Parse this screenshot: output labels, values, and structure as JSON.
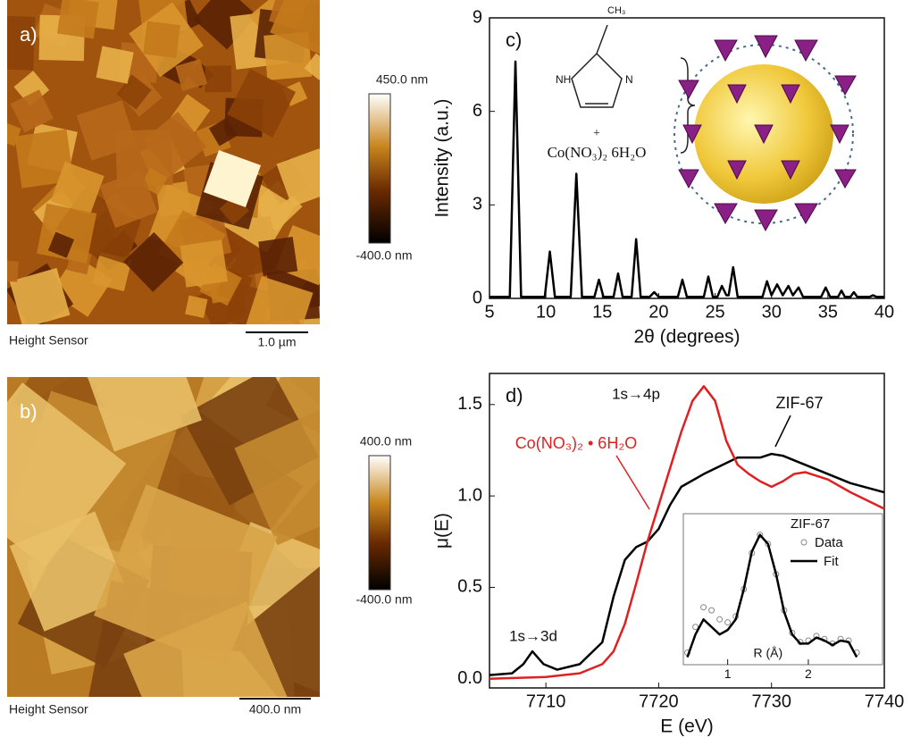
{
  "images": [
    {
      "label": "a)",
      "colorbar_max": "450.0 nm",
      "colorbar_min": "-400.0 nm",
      "caption": "Height Sensor",
      "scale_bar": "1.0 µm"
    },
    {
      "label": "b)",
      "colorbar_max": "400.0 nm",
      "colorbar_min": "-400.0 nm",
      "caption": "Height Sensor",
      "scale_bar": "400.0 nm"
    }
  ],
  "chart_data": [
    {
      "type": "line",
      "label": "c)",
      "xlabel": "2θ (degrees)",
      "ylabel": "Intensity (a.u.)",
      "x": [
        5,
        6.8,
        7.3,
        7.8,
        9.9,
        10.35,
        10.8,
        12.2,
        12.7,
        13.2,
        14.3,
        14.7,
        15.1,
        16.0,
        16.4,
        16.8,
        17.6,
        18.0,
        18.4,
        19.2,
        19.6,
        20.0,
        21.7,
        22.1,
        22.5,
        24.0,
        24.4,
        24.8,
        25.2,
        25.6,
        26.0,
        26.2,
        26.6,
        27.0,
        29.2,
        29.6,
        30.0,
        30.5,
        31.0,
        31.5,
        31.9,
        32.4,
        32.8,
        34.4,
        34.8,
        35.2,
        35.9,
        36.2,
        36.5,
        37.0,
        37.3,
        37.6,
        38.7,
        39.0,
        39.3,
        40
      ],
      "series": [
        {
          "color": "#000000",
          "values": [
            0.05,
            0.05,
            7.6,
            0.05,
            0.05,
            1.5,
            0.05,
            0.05,
            4.0,
            0.05,
            0.05,
            0.6,
            0.05,
            0.05,
            0.8,
            0.05,
            0.05,
            1.9,
            0.05,
            0.05,
            0.2,
            0.05,
            0.05,
            0.6,
            0.05,
            0.05,
            0.7,
            0.05,
            0.05,
            0.4,
            0.1,
            0.1,
            1.0,
            0.05,
            0.05,
            0.55,
            0.1,
            0.45,
            0.1,
            0.4,
            0.1,
            0.35,
            0.05,
            0.05,
            0.35,
            0.05,
            0.05,
            0.25,
            0.05,
            0.05,
            0.2,
            0.05,
            0.05,
            0.1,
            0.05,
            0.05
          ]
        }
      ],
      "xlim": [
        5,
        40
      ],
      "xticks": [
        5,
        10,
        15,
        20,
        25,
        30,
        35,
        40
      ],
      "ylim": [
        0,
        9
      ],
      "yticks": [
        0,
        3,
        6,
        9
      ],
      "annotations": [
        "CH₃",
        "NH",
        "N",
        "+",
        "Co(NO₃)₂ 6H₂O"
      ]
    },
    {
      "type": "line",
      "label": "d)",
      "xlabel": "E (eV)",
      "ylabel": "μ(E)",
      "series": [
        {
          "name": "ZIF-67",
          "color": "#000000",
          "x": [
            7705,
            7707,
            7708,
            7708.8,
            7709.8,
            7711,
            7713,
            7715,
            7716,
            7717,
            7718,
            7719,
            7720,
            7721,
            7722,
            7724,
            7726,
            7727,
            7728,
            7729,
            7730,
            7731,
            7733,
            7735,
            7737,
            7740
          ],
          "values": [
            0.02,
            0.03,
            0.08,
            0.15,
            0.08,
            0.05,
            0.08,
            0.2,
            0.45,
            0.65,
            0.72,
            0.75,
            0.82,
            0.95,
            1.05,
            1.12,
            1.18,
            1.21,
            1.21,
            1.21,
            1.23,
            1.22,
            1.17,
            1.12,
            1.07,
            1.02
          ]
        },
        {
          "name": "Co(NO₃)₂ • 6H₂O",
          "color": "#e02020",
          "x": [
            7705,
            7710,
            7713,
            7715,
            7716,
            7717,
            7718,
            7719,
            7720,
            7721,
            7722,
            7723,
            7724,
            7725,
            7726,
            7727,
            7728,
            7729,
            7730,
            7731,
            7732,
            7733,
            7735,
            7737,
            7740
          ],
          "values": [
            0.0,
            0.01,
            0.03,
            0.08,
            0.15,
            0.3,
            0.52,
            0.75,
            0.95,
            1.15,
            1.35,
            1.52,
            1.6,
            1.52,
            1.3,
            1.17,
            1.12,
            1.08,
            1.05,
            1.08,
            1.12,
            1.13,
            1.09,
            1.02,
            0.93
          ]
        }
      ],
      "xlim": [
        7705,
        7740
      ],
      "xticks": [
        7710,
        7720,
        7730,
        7740
      ],
      "ylim": [
        -0.05,
        1.67
      ],
      "yticks": [
        {
          "value": 0,
          "label": "0.0"
        },
        {
          "value": 0.5,
          "label": "0.5"
        },
        {
          "value": 1,
          "label": "1.0"
        },
        {
          "value": 1.5,
          "label": "1.5"
        }
      ],
      "annotations": [
        "1s→4p",
        "1s→3d"
      ]
    },
    {
      "type": "line",
      "title": "ZIF-67",
      "xlabel": "R (Å)",
      "x": [
        0.5,
        0.6,
        0.7,
        0.8,
        0.9,
        1.0,
        1.1,
        1.2,
        1.3,
        1.4,
        1.5,
        1.6,
        1.7,
        1.8,
        1.9,
        2.0,
        2.1,
        2.2,
        2.3,
        2.4,
        2.5,
        2.6
      ],
      "series": [
        {
          "name": "Data",
          "color": "#888888",
          "marker": "circle",
          "values": [
            0.08,
            0.25,
            0.38,
            0.36,
            0.3,
            0.28,
            0.32,
            0.5,
            0.74,
            0.86,
            0.8,
            0.6,
            0.36,
            0.21,
            0.15,
            0.16,
            0.19,
            0.17,
            0.14,
            0.17,
            0.16,
            0.08
          ]
        },
        {
          "name": "Fit",
          "color": "#000000",
          "values": [
            0.05,
            0.2,
            0.3,
            0.25,
            0.2,
            0.23,
            0.3,
            0.5,
            0.75,
            0.86,
            0.8,
            0.6,
            0.35,
            0.2,
            0.14,
            0.14,
            0.18,
            0.16,
            0.13,
            0.16,
            0.15,
            0.05
          ]
        }
      ],
      "xlim": [
        0.45,
        2.92
      ],
      "xticks": [
        1,
        2
      ],
      "ylim": [
        0,
        1
      ]
    }
  ]
}
